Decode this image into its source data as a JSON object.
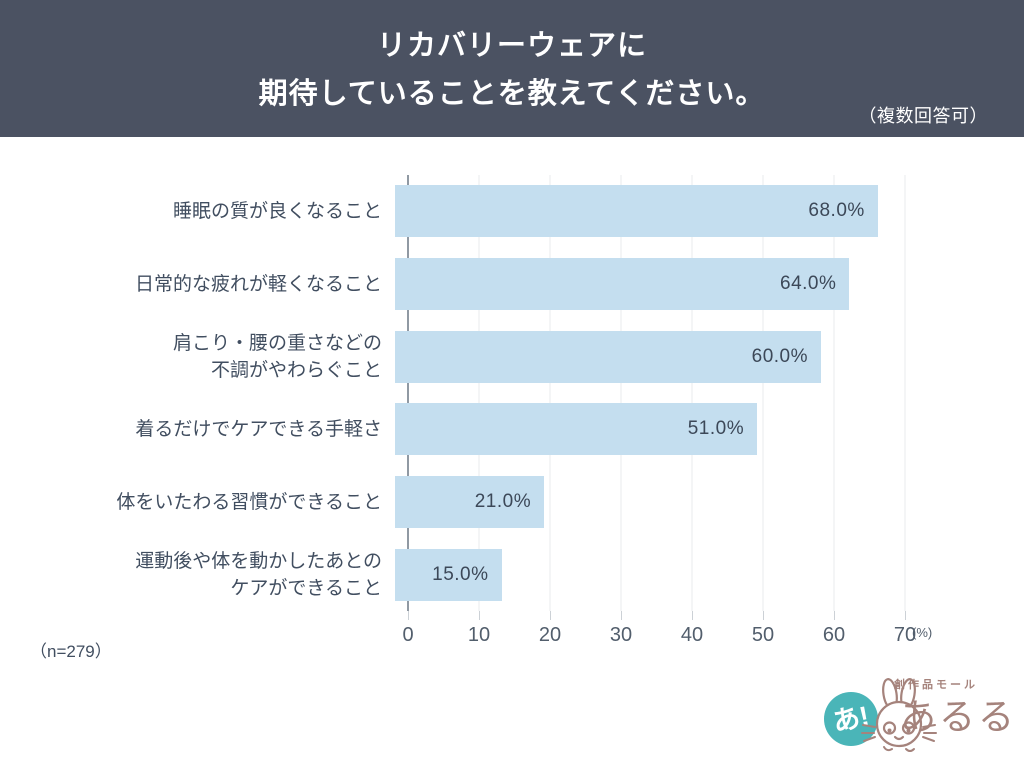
{
  "header": {
    "title_line1": "リカバリーウェアに",
    "title_line2": "期待していることを教えてください。",
    "note": "（複数回答可）"
  },
  "chart_data": {
    "type": "bar",
    "orientation": "horizontal",
    "title": "リカバリーウェアに期待していることを教えてください。",
    "categories": [
      "睡眠の質が良くなること",
      "日常的な疲れが軽くなること",
      "肩こり・腰の重さなどの不調がやわらぐこと",
      "着るだけでケアできる手軽さ",
      "体をいたわる習慣ができること",
      "運動後や体を動かしたあとのケアができること"
    ],
    "category_lines": [
      [
        "睡眠の質が良くなること"
      ],
      [
        "日常的な疲れが軽くなること"
      ],
      [
        "肩こり・腰の重さなどの",
        "不調がやわらぐこと"
      ],
      [
        "着るだけでケアできる手軽さ"
      ],
      [
        "体をいたわる習慣ができること"
      ],
      [
        "運動後や体を動かしたあとの",
        "ケアができること"
      ]
    ],
    "values": [
      68.0,
      64.0,
      60.0,
      51.0,
      21.0,
      15.0
    ],
    "value_labels": [
      "68.0%",
      "64.0%",
      "60.0%",
      "51.0%",
      "21.0%",
      "15.0%"
    ],
    "xlim": [
      0,
      70
    ],
    "x_ticks": [
      0,
      10,
      20,
      30,
      40,
      50,
      60,
      70
    ],
    "unit_label": "(%)",
    "grid": true,
    "legend": "none",
    "bar_color": "#c4deef"
  },
  "footer": {
    "sample_size": "（n=279）"
  },
  "logo": {
    "badge_text": "あ!",
    "brand_small": "創作品モール",
    "brand_large": "あるる",
    "teal": "#4ab5b8",
    "brown": "#a5837c"
  },
  "colors": {
    "header_bg": "#4b5262",
    "header_text": "#ffffff",
    "label_text": "#414e60",
    "value_text": "#3c4858",
    "axis_text": "#525e6c",
    "gridline": "#e9ebed",
    "axis_line": "#9099a3"
  }
}
